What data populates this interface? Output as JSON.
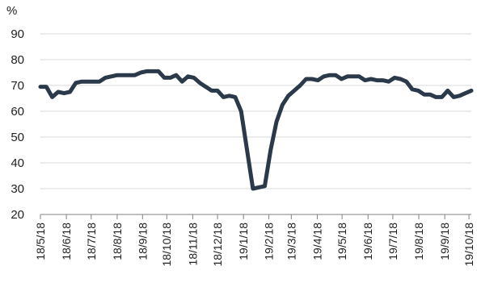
{
  "chart_data": {
    "type": "line",
    "title": "",
    "xlabel": "",
    "ylabel": "%",
    "ylim": [
      20,
      90
    ],
    "yticks": [
      20,
      30,
      40,
      50,
      60,
      70,
      80,
      90
    ],
    "grid": "horizontal",
    "legend": "none",
    "line_color": "#2b3a4a",
    "grid_color": "#d9d9d9",
    "x_tick_labels": [
      "18/5/18",
      "18/6/18",
      "18/7/18",
      "18/8/18",
      "18/9/18",
      "18/10/18",
      "18/11/18",
      "18/12/18",
      "19/1/18",
      "19/2/18",
      "19/3/18",
      "19/4/18",
      "19/5/18",
      "19/6/18",
      "19/7/18",
      "19/8/18",
      "19/9/18",
      "19/10/18"
    ],
    "x_tick_index": [
      0,
      4.4,
      8.6,
      13,
      17.3,
      21.4,
      25.8,
      30,
      34.4,
      38.7,
      42.5,
      46.9,
      51.1,
      55.5,
      59.7,
      64.1,
      68.5,
      72.6
    ],
    "series": [
      {
        "values": [
          69.5,
          69.5,
          65.5,
          67.5,
          67,
          67.5,
          71,
          71.5,
          71.5,
          71.5,
          71.5,
          73,
          73.5,
          74,
          74,
          74,
          74,
          75,
          75.5,
          75.5,
          75.5,
          73,
          73,
          74,
          71.5,
          73.5,
          73,
          71,
          69.5,
          68,
          68,
          65.5,
          66,
          65.5,
          60,
          45,
          30,
          30.5,
          31,
          45,
          56,
          62.5,
          66,
          68,
          70,
          72.5,
          72.5,
          72,
          73.5,
          74,
          74,
          72.5,
          73.5,
          73.5,
          73.5,
          72,
          72.5,
          72,
          72,
          71.5,
          73,
          72.5,
          71.5,
          68.5,
          68,
          66.5,
          66.5,
          65.5,
          65.5,
          68,
          65.5,
          66,
          67,
          68
        ]
      }
    ]
  }
}
